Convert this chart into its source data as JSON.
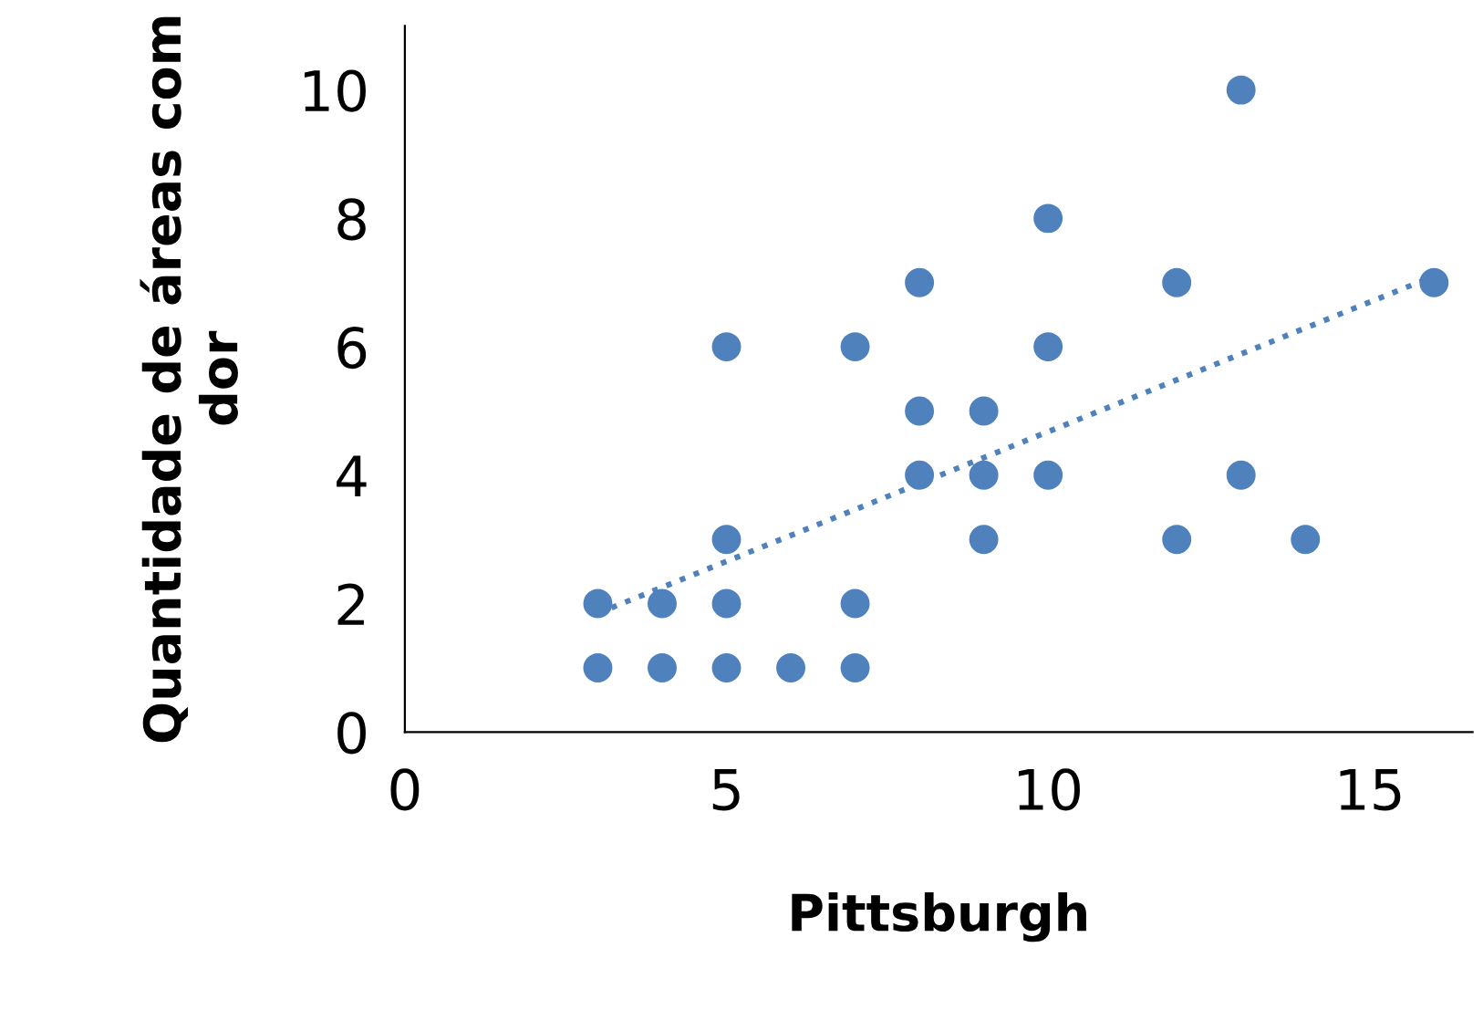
{
  "chart_data": {
    "type": "scatter",
    "xlabel": "Pittsburgh",
    "ylabel": "Quantidade de áreas com dor",
    "xlim": [
      0,
      16.6
    ],
    "xticks": [
      0,
      5,
      10,
      15
    ],
    "ylim": [
      0,
      11
    ],
    "yticks": [
      0,
      2,
      4,
      6,
      8,
      10
    ],
    "grid": false,
    "series": [
      {
        "marker": "circle",
        "color": "#4f81bd",
        "x": [
          3,
          3,
          4,
          4,
          5,
          5,
          5,
          5,
          6,
          7,
          7,
          7,
          8,
          8,
          8,
          9,
          9,
          9,
          10,
          10,
          10,
          12,
          12,
          13,
          13,
          14,
          16
        ],
        "values": [
          2,
          1,
          2,
          1,
          6,
          3,
          2,
          1,
          1,
          6,
          2,
          1,
          7,
          5,
          4,
          5,
          4,
          3,
          8,
          6,
          4,
          7,
          3,
          10,
          4,
          3,
          7
        ]
      },
      {
        "type": "line",
        "color": "#4f81bd",
        "line_style": "dotted",
        "marker": "none",
        "x": [
          3,
          16
        ],
        "values": [
          1.85,
          7.1
        ]
      }
    ]
  }
}
